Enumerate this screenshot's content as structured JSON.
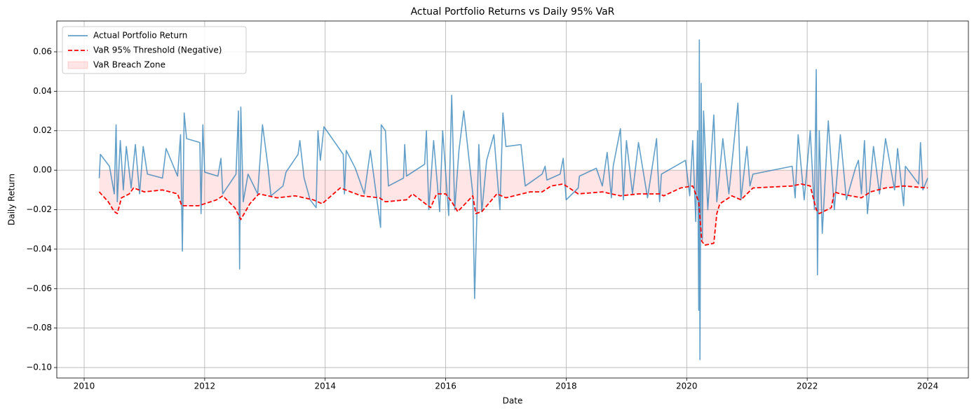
{
  "chart_data": {
    "type": "line",
    "title": "Actual Portfolio Returns vs Daily 95% VaR",
    "xlabel": "Date",
    "ylabel": "Daily Return",
    "xlim": [
      2009.546,
      2024.675
    ],
    "xticks": [
      2010,
      2012,
      2014,
      2016,
      2018,
      2020,
      2022,
      2024
    ],
    "ylim": [
      -0.1053,
      0.0756
    ],
    "yticks": [
      {
        "value": -0.1,
        "label": "−0.10"
      },
      {
        "value": -0.08,
        "label": "−0.08"
      },
      {
        "value": -0.06,
        "label": "−0.06"
      },
      {
        "value": -0.04,
        "label": "−0.04"
      },
      {
        "value": -0.02,
        "label": "−0.02"
      },
      {
        "value": 0,
        "label": "0.00"
      },
      {
        "value": 0.02,
        "label": "0.02"
      },
      {
        "value": 0.04,
        "label": "0.04"
      },
      {
        "value": 0.06,
        "label": "0.06"
      }
    ],
    "grid": true,
    "legend": "upper left",
    "series": [
      {
        "name": "Actual Portfolio Return",
        "color": "#1f77b4",
        "opacity": 0.7,
        "style": "solid",
        "x": [
          2010.25,
          2010.27,
          2010.42,
          2010.5,
          2010.53,
          2010.55,
          2010.6,
          2010.65,
          2010.7,
          2010.78,
          2010.85,
          2010.92,
          2010.98,
          2011.05,
          2011.3,
          2011.36,
          2011.55,
          2011.6,
          2011.63,
          2011.66,
          2011.7,
          2011.92,
          2011.94,
          2011.97,
          2012.0,
          2012.22,
          2012.27,
          2012.3,
          2012.52,
          2012.56,
          2012.58,
          2012.6,
          2012.64,
          2012.72,
          2012.88,
          2012.96,
          2013.05,
          2013.1,
          2013.3,
          2013.35,
          2013.55,
          2013.58,
          2013.65,
          2013.75,
          2013.85,
          2013.88,
          2013.92,
          2013.98,
          2014.3,
          2014.32,
          2014.35,
          2014.5,
          2014.65,
          2014.75,
          2014.92,
          2014.93,
          2015.0,
          2015.05,
          2015.3,
          2015.32,
          2015.35,
          2015.65,
          2015.68,
          2015.72,
          2015.8,
          2015.9,
          2015.95,
          2016.05,
          2016.1,
          2016.15,
          2016.22,
          2016.3,
          2016.45,
          2016.48,
          2016.55,
          2016.6,
          2016.68,
          2016.8,
          2016.9,
          2016.95,
          2017.0,
          2017.25,
          2017.28,
          2017.32,
          2017.6,
          2017.65,
          2017.68,
          2017.9,
          2017.95,
          2018.0,
          2018.2,
          2018.22,
          2018.5,
          2018.6,
          2018.68,
          2018.75,
          2018.78,
          2018.9,
          2018.95,
          2019.0,
          2019.1,
          2019.2,
          2019.35,
          2019.5,
          2019.52,
          2019.55,
          2019.58,
          2019.98,
          2020.05,
          2020.1,
          2020.15,
          2020.18,
          2020.2,
          2020.21,
          2020.22,
          2020.24,
          2020.26,
          2020.28,
          2020.35,
          2020.45,
          2020.5,
          2020.6,
          2020.7,
          2020.85,
          2020.9,
          2021.0,
          2021.05,
          2021.1,
          2021.75,
          2021.8,
          2021.85,
          2021.95,
          2022.05,
          2022.12,
          2022.15,
          2022.17,
          2022.2,
          2022.25,
          2022.35,
          2022.45,
          2022.55,
          2022.65,
          2022.8,
          2022.85,
          2022.9,
          2022.95,
          2023.0,
          2023.1,
          2023.2,
          2023.3,
          2023.45,
          2023.5,
          2023.6,
          2023.63,
          2023.85,
          2023.88,
          2023.92,
          2024.0
        ],
        "values": [
          -0.004,
          0.008,
          0.002,
          -0.012,
          0.023,
          -0.016,
          0.015,
          -0.01,
          0.012,
          -0.009,
          0.013,
          -0.012,
          0.012,
          -0.002,
          -0.004,
          0.011,
          -0.003,
          0.018,
          -0.041,
          0.029,
          0.016,
          0.014,
          -0.022,
          0.023,
          -0.001,
          -0.003,
          0.006,
          -0.012,
          -0.002,
          0.03,
          -0.05,
          0.032,
          -0.016,
          -0.002,
          -0.012,
          0.023,
          0.002,
          -0.013,
          -0.008,
          -0.001,
          0.008,
          0.015,
          -0.004,
          -0.015,
          -0.019,
          0.02,
          0.005,
          0.022,
          0.008,
          -0.012,
          0.01,
          0.001,
          -0.012,
          0.01,
          -0.029,
          0.023,
          0.02,
          -0.008,
          -0.004,
          0.013,
          -0.003,
          0.003,
          0.02,
          -0.02,
          0.015,
          -0.021,
          0.02,
          -0.023,
          0.038,
          -0.02,
          0.01,
          0.03,
          -0.012,
          -0.065,
          0.013,
          -0.021,
          0.005,
          0.018,
          -0.02,
          0.029,
          0.012,
          0.013,
          0.004,
          -0.008,
          -0.002,
          0.002,
          -0.005,
          -0.002,
          0.006,
          -0.015,
          -0.009,
          -0.003,
          0.001,
          -0.008,
          0.009,
          -0.014,
          0.002,
          0.021,
          -0.015,
          0.015,
          -0.012,
          0.014,
          -0.014,
          0.016,
          0.001,
          -0.016,
          -0.002,
          0.005,
          -0.013,
          0.015,
          -0.026,
          0.02,
          -0.071,
          0.066,
          -0.096,
          0.044,
          -0.035,
          0.03,
          -0.02,
          0.028,
          -0.016,
          0.016,
          -0.012,
          0.034,
          -0.015,
          0.012,
          -0.008,
          -0.002,
          0.002,
          -0.014,
          0.018,
          -0.015,
          0.02,
          -0.02,
          0.051,
          -0.053,
          0.02,
          -0.032,
          0.025,
          -0.02,
          0.018,
          -0.015,
          0.001,
          0.005,
          -0.012,
          0.015,
          -0.022,
          0.012,
          -0.012,
          0.016,
          -0.01,
          0.011,
          -0.018,
          0.002,
          -0.007,
          0.014,
          -0.01,
          -0.004
        ]
      },
      {
        "name": "VaR 95% Threshold (Negative)",
        "color": "#ff0000",
        "opacity": 1,
        "style": "dashed",
        "x": [
          2010.25,
          2010.4,
          2010.5,
          2010.55,
          2010.62,
          2010.75,
          2010.82,
          2011.0,
          2011.3,
          2011.55,
          2011.62,
          2011.9,
          2012.0,
          2012.2,
          2012.3,
          2012.5,
          2012.6,
          2012.75,
          2012.9,
          2013.2,
          2013.5,
          2013.8,
          2013.95,
          2014.1,
          2014.25,
          2014.6,
          2014.9,
          2015.0,
          2015.35,
          2015.45,
          2015.75,
          2015.85,
          2016.0,
          2016.1,
          2016.2,
          2016.45,
          2016.5,
          2016.6,
          2016.85,
          2017.0,
          2017.4,
          2017.6,
          2017.75,
          2017.95,
          2018.2,
          2018.6,
          2018.9,
          2019.2,
          2019.55,
          2019.62,
          2019.9,
          2020.1,
          2020.2,
          2020.25,
          2020.3,
          2020.45,
          2020.5,
          2020.55,
          2020.75,
          2020.9,
          2021.1,
          2021.75,
          2021.9,
          2022.05,
          2022.15,
          2022.2,
          2022.4,
          2022.45,
          2022.55,
          2022.9,
          2023.05,
          2023.3,
          2023.6,
          2024.0
        ],
        "values": [
          -0.011,
          -0.016,
          -0.021,
          -0.022,
          -0.014,
          -0.012,
          -0.009,
          -0.011,
          -0.01,
          -0.012,
          -0.018,
          -0.018,
          -0.017,
          -0.015,
          -0.013,
          -0.019,
          -0.025,
          -0.017,
          -0.012,
          -0.014,
          -0.013,
          -0.015,
          -0.017,
          -0.013,
          -0.009,
          -0.013,
          -0.014,
          -0.016,
          -0.015,
          -0.012,
          -0.019,
          -0.012,
          -0.012,
          -0.016,
          -0.021,
          -0.013,
          -0.022,
          -0.021,
          -0.012,
          -0.014,
          -0.011,
          -0.011,
          -0.008,
          -0.007,
          -0.012,
          -0.011,
          -0.013,
          -0.012,
          -0.012,
          -0.013,
          -0.009,
          -0.008,
          -0.016,
          -0.036,
          -0.038,
          -0.037,
          -0.022,
          -0.017,
          -0.013,
          -0.015,
          -0.009,
          -0.008,
          -0.007,
          -0.008,
          -0.02,
          -0.022,
          -0.019,
          -0.011,
          -0.012,
          -0.014,
          -0.011,
          -0.009,
          -0.008,
          -0.009
        ]
      }
    ],
    "fill_zone": {
      "name": "VaR Breach Zone",
      "color": "#ff0000",
      "opacity": 0.1,
      "series": 1
    }
  }
}
